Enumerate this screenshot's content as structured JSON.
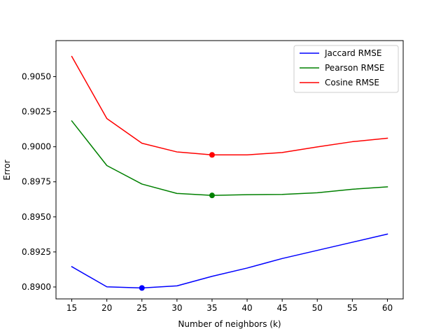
{
  "chart_data": {
    "type": "line",
    "title": "",
    "xlabel": "Number of neighbors (k)",
    "ylabel": "Error",
    "x": [
      15,
      20,
      25,
      30,
      35,
      40,
      45,
      50,
      55,
      60
    ],
    "xlim": [
      12.75,
      62.25
    ],
    "ylim": [
      0.88915,
      0.90757
    ],
    "xticks": [
      15,
      20,
      25,
      30,
      35,
      40,
      45,
      50,
      55,
      60
    ],
    "xtick_labels": [
      "15",
      "20",
      "25",
      "30",
      "35",
      "40",
      "45",
      "50",
      "55",
      "60"
    ],
    "yticks": [
      0.89,
      0.8925,
      0.895,
      0.8975,
      0.9,
      0.9025,
      0.905
    ],
    "ytick_labels": [
      "0.8900",
      "0.8925",
      "0.8950",
      "0.8975",
      "0.9000",
      "0.9025",
      "0.9050"
    ],
    "grid": false,
    "legend_position": "top-right",
    "series": [
      {
        "name": "Jaccard RMSE",
        "color": "#0000ff",
        "values": [
          0.89145,
          0.89001,
          0.88993,
          0.89008,
          0.89076,
          0.89135,
          0.89203,
          0.89261,
          0.89319,
          0.89377
        ],
        "min_marker_x": 25
      },
      {
        "name": "Pearson RMSE",
        "color": "#008000",
        "values": [
          0.90184,
          0.89866,
          0.89734,
          0.89667,
          0.89653,
          0.89658,
          0.8966,
          0.89672,
          0.89697,
          0.89714
        ],
        "min_marker_x": 35
      },
      {
        "name": "Cosine RMSE",
        "color": "#ff0000",
        "values": [
          0.90644,
          0.90201,
          0.90025,
          0.89963,
          0.89942,
          0.89942,
          0.89959,
          0.89999,
          0.90036,
          0.90061
        ],
        "min_marker_x": 35
      }
    ]
  }
}
